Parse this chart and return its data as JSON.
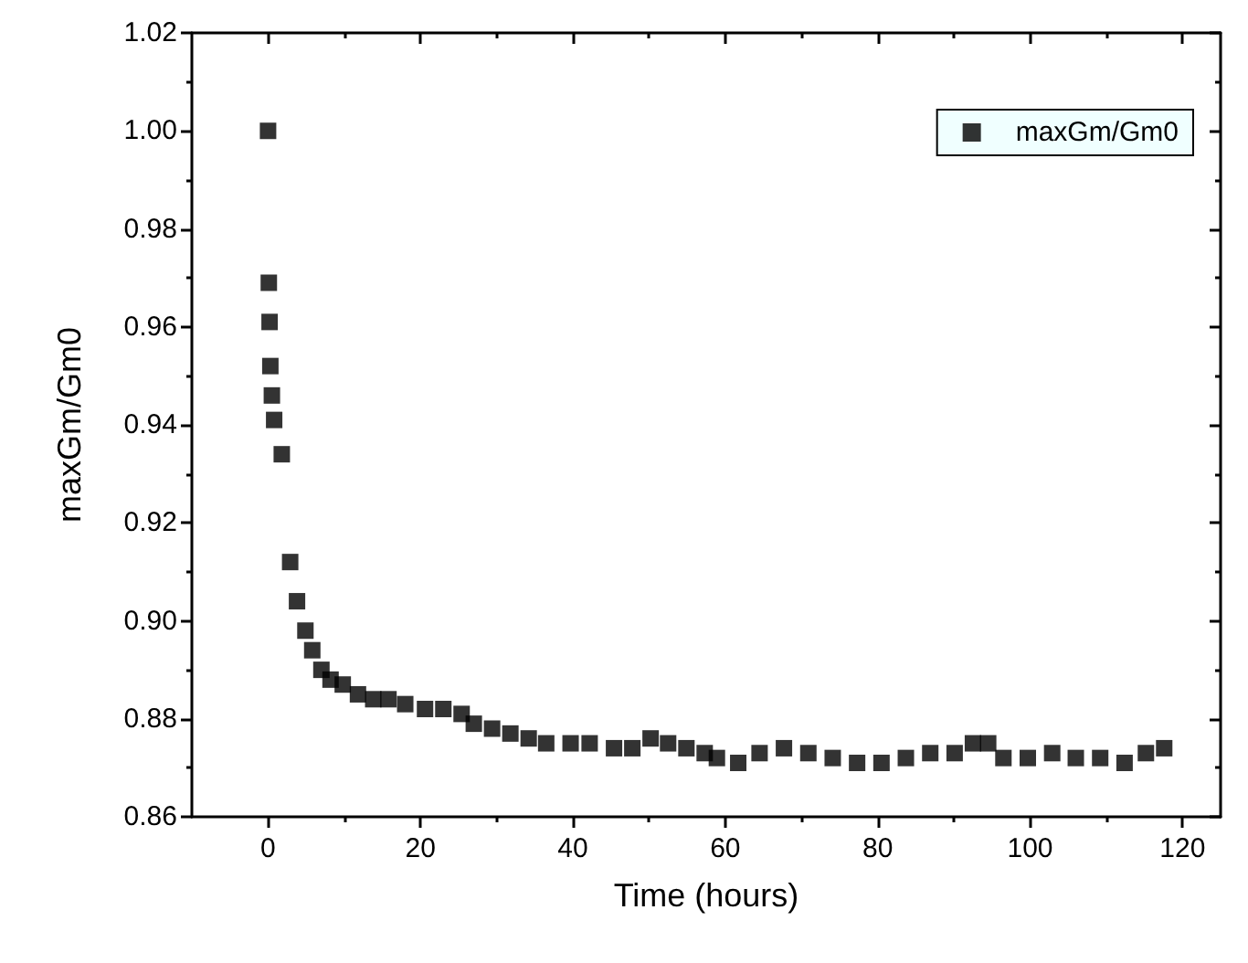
{
  "chart_data": {
    "type": "scatter",
    "xlabel": "Time (hours)",
    "ylabel": "maxGm/Gm0",
    "x": [
      0,
      0.1,
      0.2,
      0.3,
      0.5,
      0.8,
      1.8,
      2.9,
      3.8,
      4.9,
      5.8,
      7.0,
      8.2,
      9.8,
      11.8,
      13.8,
      15.8,
      18,
      20.6,
      23,
      25.4,
      27,
      29.4,
      31.8,
      34.2,
      36.5,
      39.7,
      42.2,
      45.4,
      47.8,
      50.2,
      52.5,
      54.9,
      57.3,
      58.9,
      61.7,
      64.5,
      67.7,
      70.9,
      74.1,
      77.3,
      80.5,
      83.7,
      86.9,
      90.1,
      92.5,
      94.5,
      96.5,
      99.7,
      102.9,
      106,
      109.2,
      112.4,
      115.2,
      117.6
    ],
    "series": [
      {
        "name": "maxGm/Gm0",
        "color": "#000000",
        "values": [
          1.0,
          0.969,
          0.961,
          0.952,
          0.946,
          0.941,
          0.934,
          0.912,
          0.904,
          0.898,
          0.894,
          0.89,
          0.888,
          0.887,
          0.885,
          0.884,
          0.884,
          0.883,
          0.882,
          0.882,
          0.881,
          0.879,
          0.878,
          0.877,
          0.876,
          0.875,
          0.875,
          0.875,
          0.874,
          0.874,
          0.876,
          0.875,
          0.874,
          0.873,
          0.872,
          0.871,
          0.873,
          0.874,
          0.873,
          0.872,
          0.871,
          0.871,
          0.872,
          0.873,
          0.873,
          0.875,
          0.875,
          0.872,
          0.872,
          0.873,
          0.872,
          0.872,
          0.871,
          0.873,
          0.874
        ]
      }
    ],
    "xlim": [
      -10,
      125
    ],
    "xticks": [
      0,
      20,
      40,
      60,
      80,
      100,
      120
    ],
    "ylim": [
      0.86,
      1.02
    ],
    "yticks": [
      {
        "value": 0.86,
        "label": "0.86"
      },
      {
        "value": 0.88,
        "label": "0.88"
      },
      {
        "value": 0.9,
        "label": "0.90"
      },
      {
        "value": 0.92,
        "label": "0.92"
      },
      {
        "value": 0.94,
        "label": "0.94"
      },
      {
        "value": 0.96,
        "label": "0.96"
      },
      {
        "value": 0.98,
        "label": "0.98"
      },
      {
        "value": 1.0,
        "label": "1.00"
      },
      {
        "value": 1.02,
        "label": "1.02"
      }
    ],
    "marker": "square",
    "legend": "top right",
    "grid": false
  }
}
